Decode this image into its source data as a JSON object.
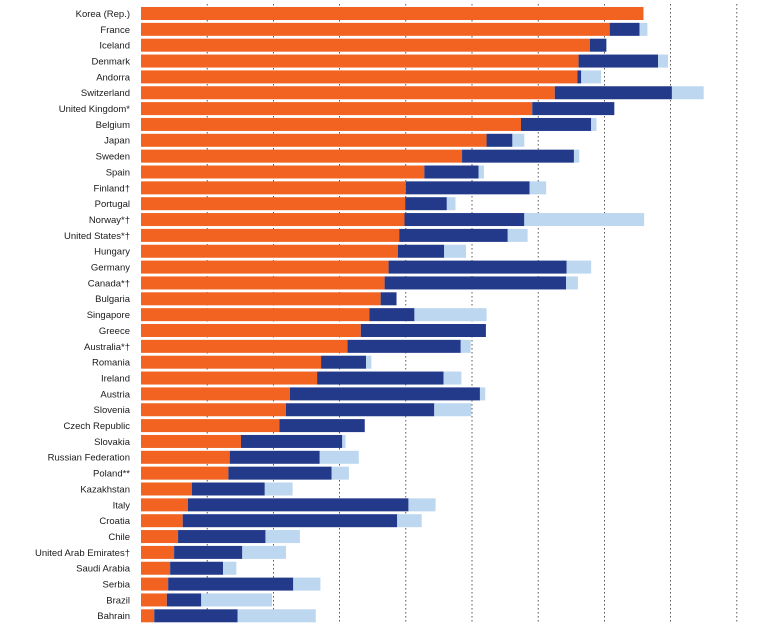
{
  "colors": {
    "orange": "#f26322",
    "navy": "#233a8b",
    "light": "#bcd7ef",
    "grid": "#333333",
    "text": "#1a1a1a"
  },
  "chart_data": {
    "type": "bar",
    "orientation": "horizontal",
    "stacked": true,
    "title": "",
    "xlabel": "",
    "ylabel": "",
    "grid": true,
    "xlim": [
      0,
      9
    ],
    "categories": [
      "Korea (Rep.)",
      "France",
      "Iceland",
      "Denmark",
      "Andorra",
      "Switzerland",
      "United Kingdom*",
      "Belgium",
      "Japan",
      "Sweden",
      "Spain",
      "Finland†",
      "Portugal",
      "Norway*†",
      "United States*†",
      "Hungary",
      "Germany",
      "Canada*†",
      "Bulgaria",
      "Singapore",
      "Greece",
      "Australia*†",
      "Romania",
      "Ireland",
      "Austria",
      "Slovenia",
      "Czech Republic",
      "Slovakia",
      "Russian Federation",
      "Poland**",
      "Kazakhstan",
      "Italy",
      "Croatia",
      "Chile",
      "United Arab Emirates†",
      "Saudi Arabia",
      "Serbia",
      "Brazil",
      "Bahrain"
    ],
    "series": [
      {
        "color": "#f26322",
        "values": [
          7.59,
          7.08,
          6.78,
          6.61,
          6.59,
          6.25,
          5.91,
          5.74,
          5.22,
          4.85,
          4.28,
          4.0,
          3.99,
          3.98,
          3.9,
          3.88,
          3.74,
          3.68,
          3.62,
          3.45,
          3.32,
          3.12,
          2.72,
          2.66,
          2.25,
          2.19,
          2.09,
          1.51,
          1.34,
          1.32,
          0.77,
          0.71,
          0.63,
          0.56,
          0.5,
          0.44,
          0.41,
          0.39,
          0.2
        ]
      },
      {
        "color": "#233a8b",
        "values": [
          0.0,
          0.45,
          0.25,
          1.2,
          0.06,
          1.77,
          1.24,
          1.06,
          0.39,
          1.69,
          0.82,
          1.87,
          0.63,
          1.81,
          1.64,
          0.7,
          2.69,
          2.74,
          0.24,
          0.68,
          1.89,
          1.71,
          0.68,
          1.91,
          2.87,
          2.24,
          1.29,
          1.53,
          1.36,
          1.56,
          1.1,
          3.33,
          3.24,
          1.32,
          1.03,
          0.8,
          1.89,
          0.52,
          1.26
        ]
      },
      {
        "color": "#bcd7ef",
        "values": [
          0.0,
          0.12,
          0.0,
          0.15,
          0.3,
          0.48,
          0.0,
          0.08,
          0.18,
          0.08,
          0.08,
          0.25,
          0.13,
          1.81,
          0.3,
          0.33,
          0.37,
          0.18,
          0.0,
          1.09,
          0.0,
          0.15,
          0.08,
          0.27,
          0.08,
          0.56,
          0.0,
          0.05,
          0.59,
          0.26,
          0.42,
          0.41,
          0.37,
          0.52,
          0.66,
          0.2,
          0.41,
          1.07,
          1.18
        ]
      }
    ]
  }
}
